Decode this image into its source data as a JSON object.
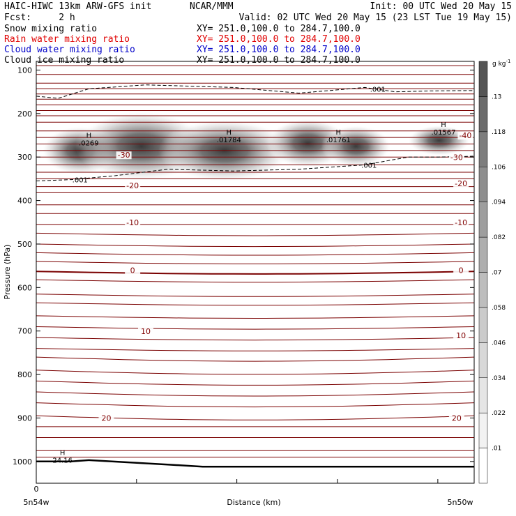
{
  "header": {
    "title_left": "HAIC-HIWC 13km ARW-GFS init",
    "center_name": "NCAR/MMM",
    "init": "Init: 00 UTC Wed 20 May 15",
    "fcst": "Fcst:     2 h",
    "valid": "Valid: 02 UTC Wed 20 May 15 (23 LST Tue 19 May 15)"
  },
  "fields": [
    {
      "name": "Snow mixing ratio",
      "xy": "XY= 251.0,100.0 to 284.7,100.0",
      "color": "#000000"
    },
    {
      "name": "Rain water mixing ratio",
      "xy": "XY= 251.0,100.0 to 284.7,100.0",
      "color": "#e00000"
    },
    {
      "name": "Cloud water mixing ratio",
      "xy": "XY= 251.0,100.0 to 284.7,100.0",
      "color": "#0000c8"
    },
    {
      "name": "Cloud ice mixing ratio",
      "xy": "XY= 251.0,100.0 to 284.7,100.0",
      "color": "#000000"
    }
  ],
  "chart_data": {
    "type": "heatmap",
    "xlabel": "Distance (km)",
    "ylabel": "Pressure (hPa)",
    "x_end_labels": [
      "5n54w",
      "5n50w"
    ],
    "ylim": [
      1050,
      80
    ],
    "yticks": [
      100,
      200,
      300,
      400,
      500,
      600,
      700,
      800,
      900,
      1000
    ],
    "colorbar": {
      "unit": "g kg",
      "unit_sup": "-1",
      "levels": [
        ".01",
        ".022",
        ".034",
        ".046",
        ".058",
        ".07",
        ".082",
        ".094",
        ".106",
        ".118",
        ".13"
      ],
      "colors": [
        "#ffffff",
        "#f2f2f2",
        "#e5e5e5",
        "#d8d8d8",
        "#cbcbcb",
        "#bdbdbd",
        "#aeaeae",
        "#9e9e9e",
        "#8e8e8e",
        "#7d7d7d",
        "#6b6b6b",
        "#555555"
      ]
    },
    "maxima": [
      {
        "label": "H",
        "value": ".0269",
        "x": 0.12,
        "p": 265
      },
      {
        "label": "H",
        "value": ".01784",
        "x": 0.44,
        "p": 258
      },
      {
        "label": "H",
        "value": ".01761",
        "x": 0.69,
        "p": 258
      },
      {
        "label": "H",
        "value": ".01567",
        "x": 0.93,
        "p": 240
      },
      {
        "label": "H",
        "value": "24.16",
        "x": 0.06,
        "p": 995
      }
    ],
    "temperature_labels": [
      {
        "text": "-40",
        "x": 0.98,
        "p": 255
      },
      {
        "text": "-30",
        "x": 0.2,
        "p": 300
      },
      {
        "text": "-30",
        "x": 0.96,
        "p": 305
      },
      {
        "text": "-20",
        "x": 0.22,
        "p": 370
      },
      {
        "text": "-20",
        "x": 0.97,
        "p": 365
      },
      {
        "text": "-10",
        "x": 0.22,
        "p": 455
      },
      {
        "text": "-10",
        "x": 0.97,
        "p": 455
      },
      {
        "text": "0",
        "x": 0.22,
        "p": 565
      },
      {
        "text": "0",
        "x": 0.97,
        "p": 565
      },
      {
        "text": "10",
        "x": 0.25,
        "p": 705
      },
      {
        "text": "10",
        "x": 0.97,
        "p": 715
      },
      {
        "text": "20",
        "x": 0.16,
        "p": 905
      },
      {
        "text": "20",
        "x": 0.96,
        "p": 905
      }
    ],
    "contour_labels": [
      {
        "text": ".001",
        "x": 0.1,
        "p": 352
      },
      {
        "text": ".001",
        "x": 0.76,
        "p": 318
      },
      {
        "text": ".001",
        "x": 0.78,
        "p": 143
      }
    ]
  }
}
